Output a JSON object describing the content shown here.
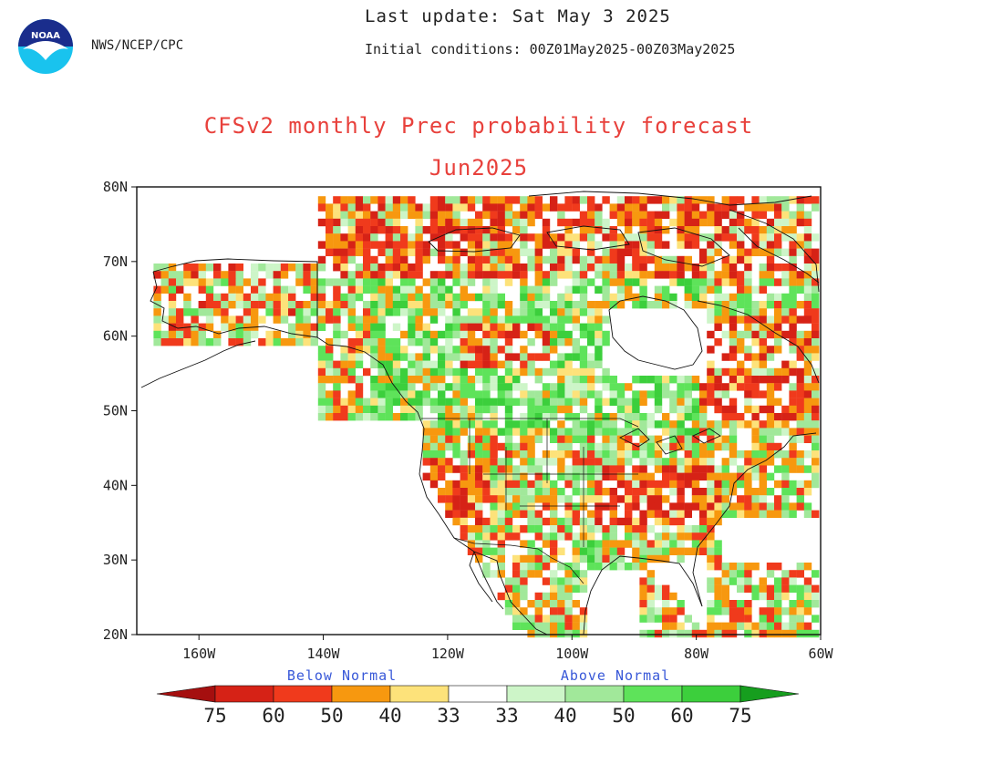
{
  "header": {
    "agency": "NWS/NCEP/CPC",
    "last_update": "Last update: Sat May 3 2025",
    "initial_conditions": "Initial conditions: 00Z01May2025-00Z03May2025"
  },
  "title": "CFSv2 monthly Prec probability forecast",
  "subtitle": "Jun2025",
  "map": {
    "lat_labels": [
      "80N",
      "70N",
      "60N",
      "50N",
      "40N",
      "30N",
      "20N"
    ],
    "lon_labels": [
      "160W",
      "140W",
      "120W",
      "100W",
      "80W",
      "60W"
    ],
    "lat_range": [
      20,
      80
    ],
    "lon_range": [
      -170,
      -60
    ]
  },
  "legend": {
    "below_label": "Below Normal",
    "above_label": "Above Normal",
    "below_numbers": [
      "75",
      "60",
      "50",
      "40",
      "33"
    ],
    "above_numbers": [
      "33",
      "40",
      "50",
      "60",
      "75"
    ],
    "below_colors": [
      "#a50f0f",
      "#d62216",
      "#f03a1c",
      "#f7980f",
      "#fde27a"
    ],
    "above_colors": [
      "#cdf5c8",
      "#a1e89a",
      "#5ee35a",
      "#3ccf3c",
      "#169e1e"
    ]
  }
}
